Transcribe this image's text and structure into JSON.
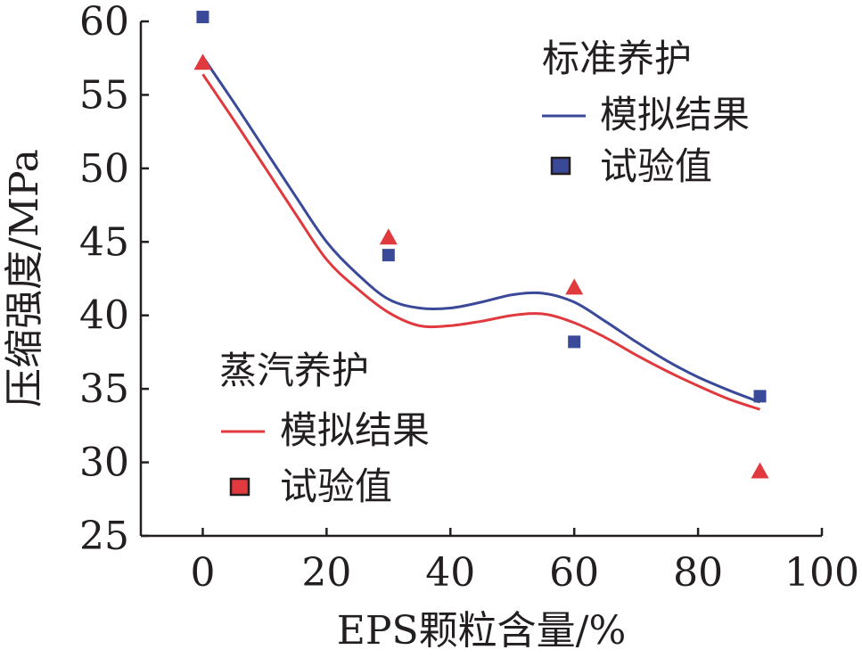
{
  "chart_data": {
    "type": "scatter",
    "xlabel": "EPS颗粒含量/%",
    "ylabel": "压缩强度/MPa",
    "xlim": [
      -10,
      100
    ],
    "ylim": [
      25,
      60
    ],
    "xticks": [
      0,
      20,
      40,
      60,
      80,
      100
    ],
    "yticks": [
      25,
      30,
      35,
      40,
      45,
      50,
      55,
      60
    ],
    "grid": false,
    "groups": [
      {
        "name": "标准养护",
        "color": "#3a4a98",
        "legend_position": "top-right",
        "series": [
          {
            "name": "模拟结果",
            "kind": "line",
            "x": [
              0,
              5,
              10,
              15,
              20,
              25,
              30,
              35,
              40,
              45,
              50,
              55,
              60,
              65,
              70,
              75,
              80,
              85,
              90
            ],
            "y": [
              57.6,
              54.5,
              51.3,
              48.1,
              45.0,
              42.8,
              41.1,
              40.5,
              40.5,
              40.9,
              41.4,
              41.5,
              40.9,
              39.6,
              38.2,
              36.9,
              35.8,
              34.9,
              34.1
            ]
          },
          {
            "name": "试验值",
            "kind": "scatter",
            "marker": "square",
            "x": [
              0,
              30,
              60,
              90
            ],
            "y": [
              60.3,
              44.1,
              38.2,
              34.5
            ]
          }
        ]
      },
      {
        "name": "蒸汽养护",
        "color": "#e0393e",
        "legend_position": "bottom-left",
        "series": [
          {
            "name": "模拟结果",
            "kind": "line",
            "x": [
              0,
              5,
              10,
              15,
              20,
              25,
              30,
              35,
              40,
              45,
              50,
              55,
              60,
              65,
              70,
              75,
              80,
              85,
              90
            ],
            "y": [
              56.4,
              53.3,
              50.1,
              46.9,
              43.8,
              41.8,
              40.2,
              39.3,
              39.3,
              39.6,
              40.0,
              40.1,
              39.5,
              38.5,
              37.3,
              36.2,
              35.2,
              34.3,
              33.6
            ]
          },
          {
            "name": "试验值",
            "kind": "scatter",
            "marker": "triangle",
            "x": [
              0,
              30,
              60,
              90
            ],
            "y": [
              57.2,
              45.3,
              41.9,
              29.4
            ]
          }
        ]
      }
    ]
  }
}
